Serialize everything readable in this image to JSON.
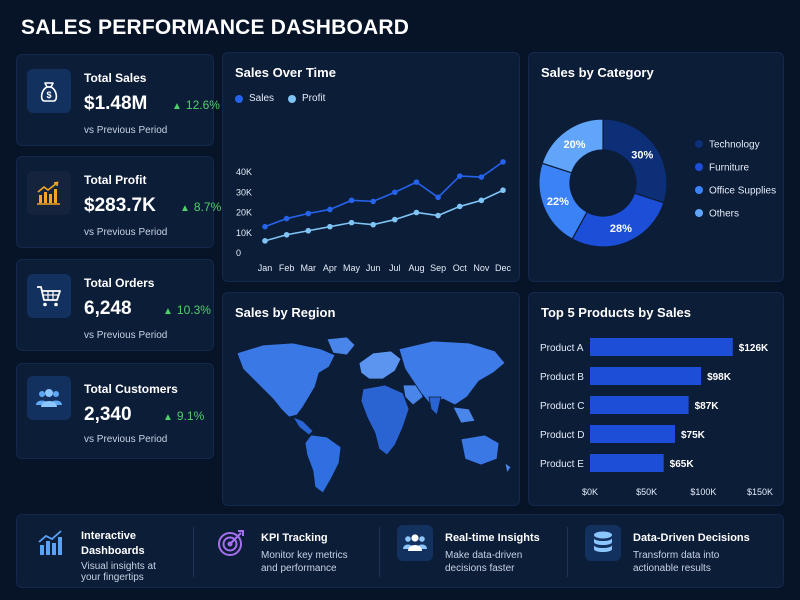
{
  "title": "SALES PERFORMANCE DASHBOARD",
  "kpis": [
    {
      "label": "Total Sales",
      "value": "$1.48M",
      "change": "12.6%",
      "sub": "vs Previous Period",
      "icon": "money-bag-icon"
    },
    {
      "label": "Total Profit",
      "value": "$283.7K",
      "change": "8.7%",
      "sub": "vs Previous Period",
      "icon": "bar-chart-growth-icon"
    },
    {
      "label": "Total Orders",
      "value": "6,248",
      "change": "10.3%",
      "sub": "vs Previous Period",
      "icon": "shopping-cart-icon"
    },
    {
      "label": "Total Customers",
      "value": "2,340",
      "change": "9.1%",
      "sub": "vs Previous Period",
      "icon": "users-icon"
    }
  ],
  "colors": {
    "accent": "#2563eb",
    "light": "#7fc4f5",
    "positive": "#4fd06b",
    "tech": "#0d2f78",
    "furniture": "#1d4ed8",
    "office": "#3b82f6",
    "others": "#60a5fa"
  },
  "sales_over_time": {
    "title": "Sales Over Time",
    "legend": [
      "Sales",
      "Profit"
    ]
  },
  "sales_by_category": {
    "title": "Sales by Category"
  },
  "sales_by_region": {
    "title": "Sales by Region"
  },
  "top_products": {
    "title": "Top 5 Products by Sales"
  },
  "chart_data": [
    {
      "type": "line",
      "title": "Sales Over Time",
      "x": [
        "Jan",
        "Feb",
        "Mar",
        "Apr",
        "May",
        "Jun",
        "Jul",
        "Aug",
        "Sep",
        "Oct",
        "Nov",
        "Dec"
      ],
      "series": [
        {
          "name": "Sales",
          "values": [
            13000,
            17000,
            19500,
            21500,
            26000,
            25500,
            30000,
            35000,
            27500,
            38000,
            37500,
            45000
          ]
        },
        {
          "name": "Profit",
          "values": [
            6000,
            9000,
            11000,
            13000,
            15000,
            14000,
            16500,
            20000,
            18500,
            23000,
            26000,
            31000
          ]
        }
      ],
      "y_ticks": [
        "0",
        "10K",
        "20K",
        "30K",
        "40K"
      ],
      "ylim": [
        0,
        40000
      ],
      "grid": false,
      "legend": "top-left"
    },
    {
      "type": "pie",
      "title": "Sales by Category",
      "labels": [
        "Technology",
        "Furniture",
        "Office Supplies",
        "Others"
      ],
      "values": [
        30,
        28,
        22,
        20
      ],
      "value_labels": [
        "30%",
        "28%",
        "22%",
        "20%"
      ],
      "legend": "right"
    },
    {
      "type": "bar",
      "title": "Top 5 Products by Sales",
      "orientation": "horizontal",
      "categories": [
        "Product A",
        "Product B",
        "Product C",
        "Product D",
        "Product E"
      ],
      "values": [
        126000,
        98000,
        87000,
        75000,
        65000
      ],
      "value_labels": [
        "$126K",
        "$98K",
        "$87K",
        "$75K",
        "$65K"
      ],
      "x_ticks": [
        "$0K",
        "$50K",
        "$100K",
        "$150K"
      ],
      "xlim": [
        0,
        150000
      ]
    }
  ],
  "features": [
    {
      "title": "Interactive\nDashboards",
      "desc": "Visual insights at\nyour fingertips",
      "icon": "dashboard-bars-icon"
    },
    {
      "title": "KPI Tracking",
      "desc": "Monitor key metrics\nand performance",
      "icon": "target-icon"
    },
    {
      "title": "Real-time Insights",
      "desc": "Make data-driven\ndecisions faster",
      "icon": "people-group-icon"
    },
    {
      "title": "Data-Driven Decisions",
      "desc": "Transform data into\nactionable results",
      "icon": "database-icon"
    }
  ]
}
